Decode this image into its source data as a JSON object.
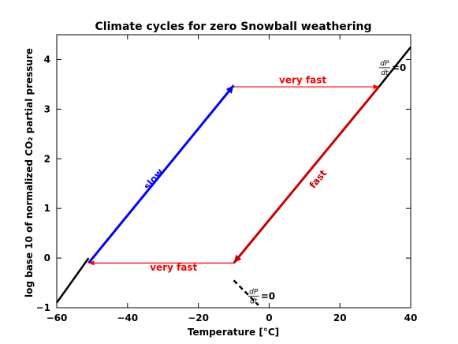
{
  "chart_data": {
    "type": "line",
    "title": "Climate cycles for zero Snowball weathering",
    "xlabel": "Temperature [°C]",
    "ylabel": "log base 10 of normalized CO₂ partial pressure",
    "xlim": [
      -60,
      40
    ],
    "ylim": [
      -1,
      4.5
    ],
    "xticks": [
      -60,
      -40,
      -20,
      0,
      20,
      40
    ],
    "yticks": [
      -1,
      0,
      1,
      2,
      3,
      4
    ],
    "xtick_labels": [
      "−60",
      "−40",
      "−20",
      "0",
      "20",
      "40"
    ],
    "ytick_labels": [
      "−1",
      "0",
      "1",
      "2",
      "3",
      "4"
    ],
    "grid": false,
    "colors": {
      "equilibrium": "#000000",
      "slow": "#0000ff",
      "fast": "#cc0000",
      "very_fast": "#ff0000"
    },
    "equilibrium_lines": [
      {
        "x": [
          -60,
          -51
        ],
        "y": [
          -0.9,
          0.0
        ],
        "style": "solid"
      },
      {
        "x": [
          31,
          40
        ],
        "y": [
          3.45,
          4.25
        ],
        "style": "solid"
      },
      {
        "x": [
          -10,
          -3
        ],
        "y": [
          -0.45,
          -0.95
        ],
        "style": "dashed"
      }
    ],
    "arrows": [
      {
        "name": "slow",
        "from": [
          -51,
          -0.1
        ],
        "to": [
          -10,
          3.48
        ],
        "color": "slow",
        "label_pos": [
          -32,
          1.55
        ],
        "label_angle": -50
      },
      {
        "name": "very fast top",
        "from": [
          -10,
          3.45
        ],
        "to": [
          31,
          3.45
        ],
        "color": "very_fast",
        "label_pos": [
          9.5,
          3.52
        ]
      },
      {
        "name": "fast",
        "from": [
          31,
          3.45
        ],
        "to": [
          -10,
          -0.1
        ],
        "color": "fast",
        "label_pos": [
          14.5,
          1.55
        ],
        "label_angle": -50
      },
      {
        "name": "very fast bottom",
        "from": [
          -10,
          -0.1
        ],
        "to": [
          -51,
          -0.1
        ],
        "color": "very_fast",
        "label_pos": [
          -27,
          -0.25
        ]
      }
    ],
    "annotations": [
      {
        "text": "very fast",
        "color": "very_fast",
        "arrow": 1
      },
      {
        "text": "very fast",
        "color": "very_fast",
        "arrow": 3
      },
      {
        "text": "slow",
        "color": "slow",
        "arrow": 0
      },
      {
        "text": "fast",
        "color": "fast",
        "arrow": 2
      }
    ],
    "equilibrium_labels": [
      {
        "numerator": "dP",
        "denominator": "dt",
        "suffix": "=0",
        "pos": [
          31.5,
          3.85
        ]
      },
      {
        "numerator": "dP",
        "denominator": "dt",
        "suffix": "=0",
        "pos": [
          -5.5,
          -0.75
        ]
      }
    ]
  }
}
